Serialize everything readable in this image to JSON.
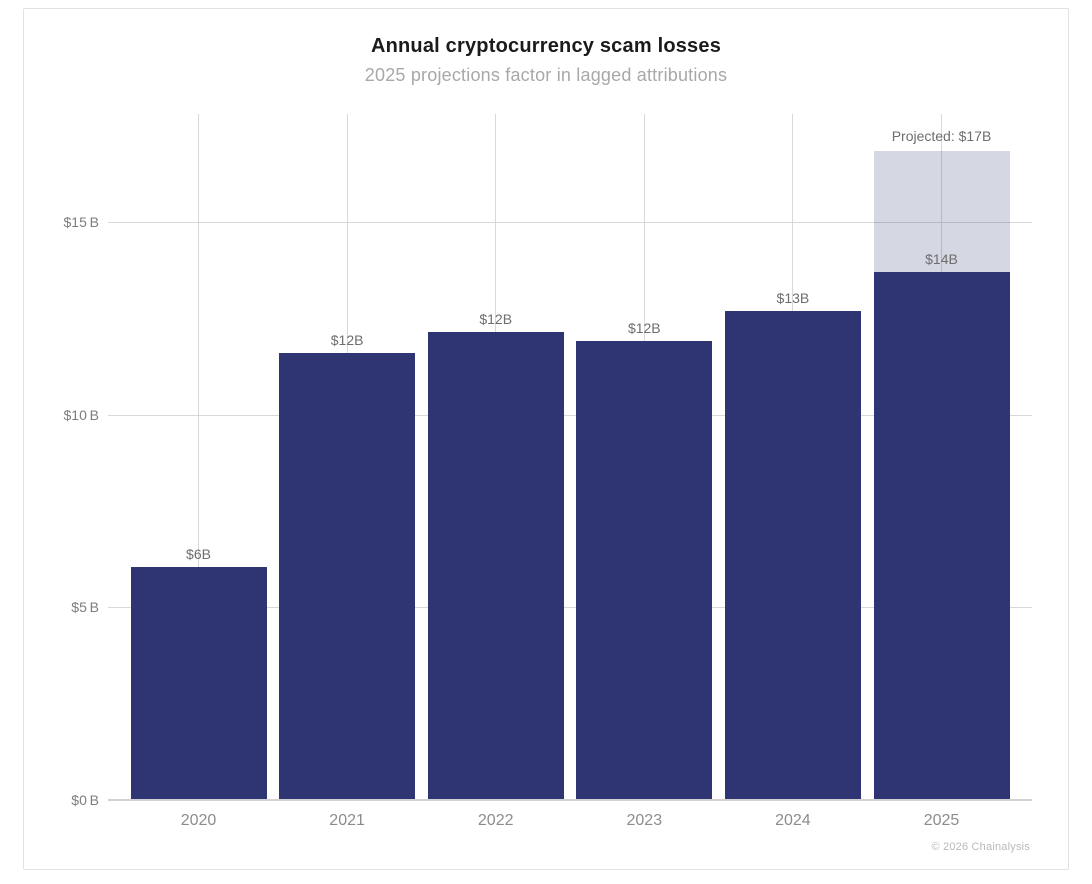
{
  "chart_data": {
    "type": "bar",
    "title": "Annual cryptocurrency scam losses",
    "subtitle": "2025 projections factor in lagged attributions",
    "unit": "billions USD",
    "categories": [
      "2020",
      "2021",
      "2022",
      "2023",
      "2024",
      "2025"
    ],
    "bars": [
      {
        "year": "2020",
        "value": 6.05,
        "label": "$6B"
      },
      {
        "year": "2021",
        "value": 11.6,
        "label": "$12B"
      },
      {
        "year": "2022",
        "value": 12.15,
        "label": "$12B"
      },
      {
        "year": "2023",
        "value": 11.9,
        "label": "$12B"
      },
      {
        "year": "2024",
        "value": 12.7,
        "label": "$13B"
      },
      {
        "year": "2025",
        "value": 13.7,
        "label": "$14B",
        "projected_value": 16.85,
        "projected_label": "Projected: $17B"
      }
    ],
    "y_axis": {
      "ticks": [
        {
          "value": 0,
          "label": "$0 B"
        },
        {
          "value": 5,
          "label": "$5 B"
        },
        {
          "value": 10,
          "label": "$10 B"
        },
        {
          "value": 15,
          "label": "$15 B"
        }
      ],
      "ylim": [
        0,
        17.8
      ]
    },
    "grid": true,
    "legend": "none",
    "colors": {
      "bar": "#2f3572",
      "projected_bar": "rgba(47,53,114,0.20)",
      "gridline": "#d8d8d8",
      "baseline": "#d2d2d2"
    },
    "footer": "© 2026 Chainalysis"
  }
}
